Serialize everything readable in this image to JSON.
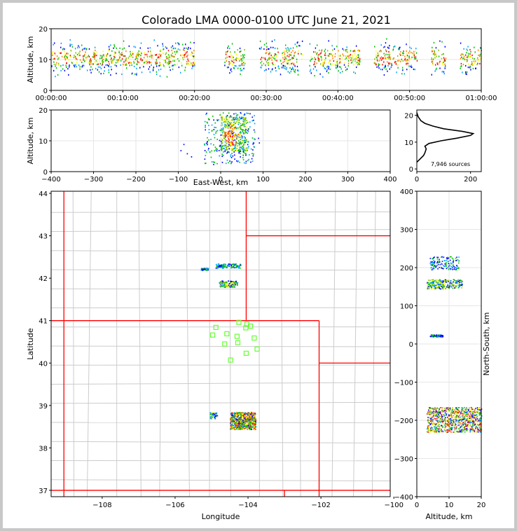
{
  "chart_data": [
    {
      "type": "scatter",
      "panel": "altitude-vs-time",
      "title": "Colorado LMA 0000-0100 UTC June 21, 2021",
      "xlabel": "",
      "ylabel": "Altitude, km",
      "xticks": [
        "00:00:00",
        "00:10:00",
        "00:20:00",
        "00:30:00",
        "00:40:00",
        "00:50:00",
        "01:00:00"
      ],
      "xlim_minutes": [
        0,
        60
      ],
      "ylim": [
        0,
        20
      ],
      "yticks": [
        0,
        10,
        20
      ],
      "grid": true,
      "activity_windows_minutes": [
        [
          0,
          9
        ],
        [
          9,
          12
        ],
        [
          12,
          17
        ],
        [
          17,
          20
        ],
        [
          24,
          27
        ],
        [
          29,
          33
        ],
        [
          33,
          35
        ],
        [
          36,
          39
        ],
        [
          39,
          43
        ],
        [
          45,
          51
        ],
        [
          53,
          55
        ],
        [
          57,
          60
        ]
      ],
      "altitude_core_km": [
        5,
        16
      ],
      "colormap": "source density (blue-green-yellow-red)"
    },
    {
      "type": "scatter",
      "panel": "altitude-vs-east-west",
      "xlabel": "East-West, km",
      "ylabel": "Altitude, km",
      "xlim": [
        -400,
        400
      ],
      "xticks": [
        -400,
        -300,
        -200,
        -100,
        0,
        100,
        200,
        300,
        400
      ],
      "ylim": [
        0,
        20
      ],
      "yticks": [
        0,
        10,
        20
      ],
      "grid": true,
      "x_extent_km": [
        -95,
        95
      ],
      "core_x_km": [
        0,
        60
      ],
      "core_altitude_km": [
        7,
        18
      ]
    },
    {
      "type": "line",
      "panel": "altitude-histogram",
      "xlim": [
        0,
        240
      ],
      "xticks": [
        0,
        200
      ],
      "ylim": [
        -1,
        22
      ],
      "yticks": [
        0,
        10,
        20
      ],
      "annotation": "7,946 sources",
      "points": [
        [
          0,
          2.5
        ],
        [
          10,
          3.5
        ],
        [
          25,
          5
        ],
        [
          30,
          6
        ],
        [
          35,
          7.5
        ],
        [
          30,
          8.5
        ],
        [
          45,
          9.5
        ],
        [
          90,
          10.5
        ],
        [
          150,
          11.5
        ],
        [
          200,
          12.5
        ],
        [
          210,
          13.2
        ],
        [
          170,
          14
        ],
        [
          100,
          15
        ],
        [
          60,
          16
        ],
        [
          30,
          17
        ],
        [
          15,
          18
        ],
        [
          5,
          19.5
        ],
        [
          0,
          21
        ]
      ]
    },
    {
      "type": "scatter",
      "panel": "plan-view-map",
      "xlabel": "Longitude",
      "ylabel": "Latitude",
      "xlim": [
        -109.4,
        -100.1
      ],
      "ylim": [
        36.85,
        44.05
      ],
      "xticks": [
        -108,
        -106,
        -104,
        -102,
        -100
      ],
      "yticks": [
        37,
        38,
        39,
        40,
        41,
        42,
        43,
        44
      ],
      "state_border_color": "#ff0000",
      "county_border_color": "#cccccc",
      "station_color": "#66ff33",
      "stations": [
        [
          -104.88,
          40.84
        ],
        [
          -104.97,
          40.66
        ],
        [
          -104.58,
          40.69
        ],
        [
          -104.64,
          40.45
        ],
        [
          -104.25,
          40.96
        ],
        [
          -104.03,
          40.92
        ],
        [
          -103.93,
          40.87
        ],
        [
          -104.06,
          40.83
        ],
        [
          -104.3,
          40.63
        ],
        [
          -103.83,
          40.59
        ],
        [
          -104.28,
          40.48
        ],
        [
          -103.75,
          40.33
        ],
        [
          -104.05,
          40.23
        ],
        [
          -104.48,
          40.07
        ]
      ],
      "clusters": [
        {
          "lon": [
            -104.5,
            -103.8
          ],
          "lat": [
            38.45,
            38.85
          ],
          "intensity": "high"
        },
        {
          "lon": [
            -105.05,
            -104.85
          ],
          "lat": [
            38.7,
            38.85
          ],
          "intensity": "medium"
        },
        {
          "lon": [
            -104.8,
            -104.3
          ],
          "lat": [
            41.8,
            41.95
          ],
          "intensity": "medium"
        },
        {
          "lon": [
            -104.9,
            -104.2
          ],
          "lat": [
            42.25,
            42.35
          ],
          "intensity": "low"
        },
        {
          "lon": [
            -105.3,
            -105.1
          ],
          "lat": [
            42.2,
            42.25
          ],
          "intensity": "low"
        }
      ]
    },
    {
      "type": "scatter",
      "panel": "north-south-vs-altitude",
      "xlabel": "Altitude, km",
      "ylabel": "North-South, km",
      "xlim": [
        0,
        20
      ],
      "xticks": [
        0,
        10,
        20
      ],
      "ylim": [
        -400,
        400
      ],
      "yticks": [
        -400,
        -300,
        -200,
        -100,
        0,
        100,
        200,
        300,
        400
      ],
      "grid": true,
      "clusters": [
        {
          "alt": [
            3,
            20
          ],
          "ns": [
            -230,
            -165
          ],
          "intensity": "high"
        },
        {
          "alt": [
            3,
            14
          ],
          "ns": [
            145,
            170
          ],
          "intensity": "medium"
        },
        {
          "alt": [
            4,
            13
          ],
          "ns": [
            195,
            230
          ],
          "intensity": "low"
        },
        {
          "alt": [
            4,
            8
          ],
          "ns": [
            20,
            25
          ],
          "intensity": "low"
        }
      ]
    }
  ]
}
